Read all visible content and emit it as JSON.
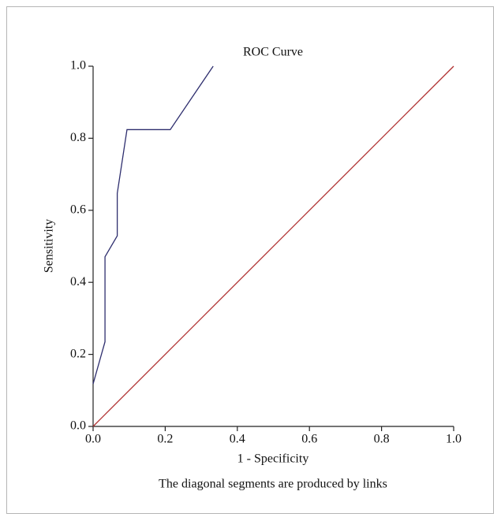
{
  "chart_data": {
    "type": "line",
    "title": "ROC Curve",
    "x_label": "1 - Specificity",
    "y_label": "Sensitivity",
    "footnote": "The diagonal segments are produced by links",
    "xlim": [
      0,
      1
    ],
    "ylim": [
      0,
      1
    ],
    "xticks": [
      {
        "value": 0,
        "label": "0.0"
      },
      {
        "value": 0.2,
        "label": "0.2"
      },
      {
        "value": 0.4,
        "label": "0.4"
      },
      {
        "value": 0.6,
        "label": "0.6"
      },
      {
        "value": 0.8,
        "label": "0.8"
      },
      {
        "value": 1,
        "label": "1.0"
      }
    ],
    "yticks": [
      {
        "value": 0,
        "label": "0.0"
      },
      {
        "value": 0.2,
        "label": "0.2"
      },
      {
        "value": 0.4,
        "label": "0.4"
      },
      {
        "value": 0.6,
        "label": "0.6"
      },
      {
        "value": 0.8,
        "label": "0.8"
      },
      {
        "value": 1,
        "label": "1.0"
      }
    ],
    "grid": false,
    "series": [
      {
        "color": "#2e2e6e",
        "x": [
          0,
          0.033,
          0.033,
          0.067,
          0.067,
          0.094,
          0.214,
          0.333
        ],
        "values": [
          0.118,
          0.235,
          0.471,
          0.529,
          0.647,
          0.824,
          0.824,
          1
        ]
      },
      {
        "color": "#b03030",
        "x": [
          0,
          1
        ],
        "values": [
          0,
          1
        ]
      }
    ]
  }
}
